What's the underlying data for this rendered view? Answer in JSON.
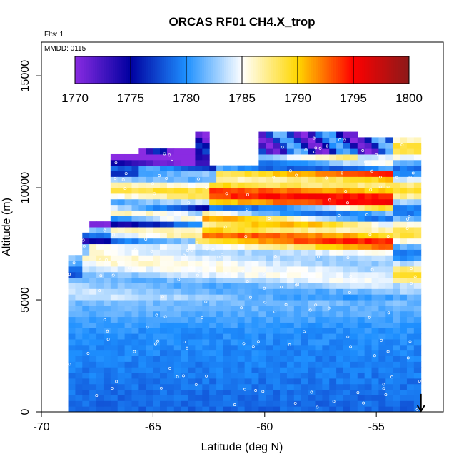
{
  "chart_data": {
    "type": "heatmap",
    "title": "ORCAS RF01 CH4.X_trop",
    "xlabel": "Latitude (deg N)",
    "ylabel": "Altitude (m)",
    "xlim": [
      -70,
      -52
    ],
    "ylim": [
      0,
      16500
    ],
    "xticks": [
      -70,
      -65,
      -60,
      -55
    ],
    "xtick_labels": [
      "-70",
      "-65",
      "-60",
      "-55"
    ],
    "yticks": [
      0,
      5000,
      10000,
      15000
    ],
    "ytick_labels": [
      "0",
      "5000",
      "10000",
      "15000"
    ],
    "annotations": {
      "flights": "Flts: 1",
      "date": "MMDD: 0115"
    },
    "colorbar": {
      "min": 1770,
      "max": 1800,
      "ticks": [
        1770,
        1775,
        1780,
        1785,
        1790,
        1795,
        1800
      ],
      "tick_labels": [
        "1770",
        "1775",
        "1780",
        "1785",
        "1790",
        "1795",
        "1800"
      ],
      "colors": [
        "#8a2be2",
        "#0000a0",
        "#1e90ff",
        "#ffffff",
        "#ffd700",
        "#ff0000",
        "#8b1a1a"
      ]
    },
    "arrow": {
      "lat": -53,
      "alt_top": 800,
      "alt_bottom": 0
    },
    "field": {
      "lat_range": [
        -68.8,
        -53.0
      ],
      "alt_range": [
        0,
        12500
      ],
      "n_cols": 50,
      "n_rows": 50,
      "notes": "Curtain of CH4 mixing ratio (ppb) along flight track; values 1776-1782 near surface, 1782-1792 bands at 5-7 km, 1790-1800 layers at 7.5-11 km, blue/purple 1770-1778 fringes near 8-12.5 km"
    }
  }
}
